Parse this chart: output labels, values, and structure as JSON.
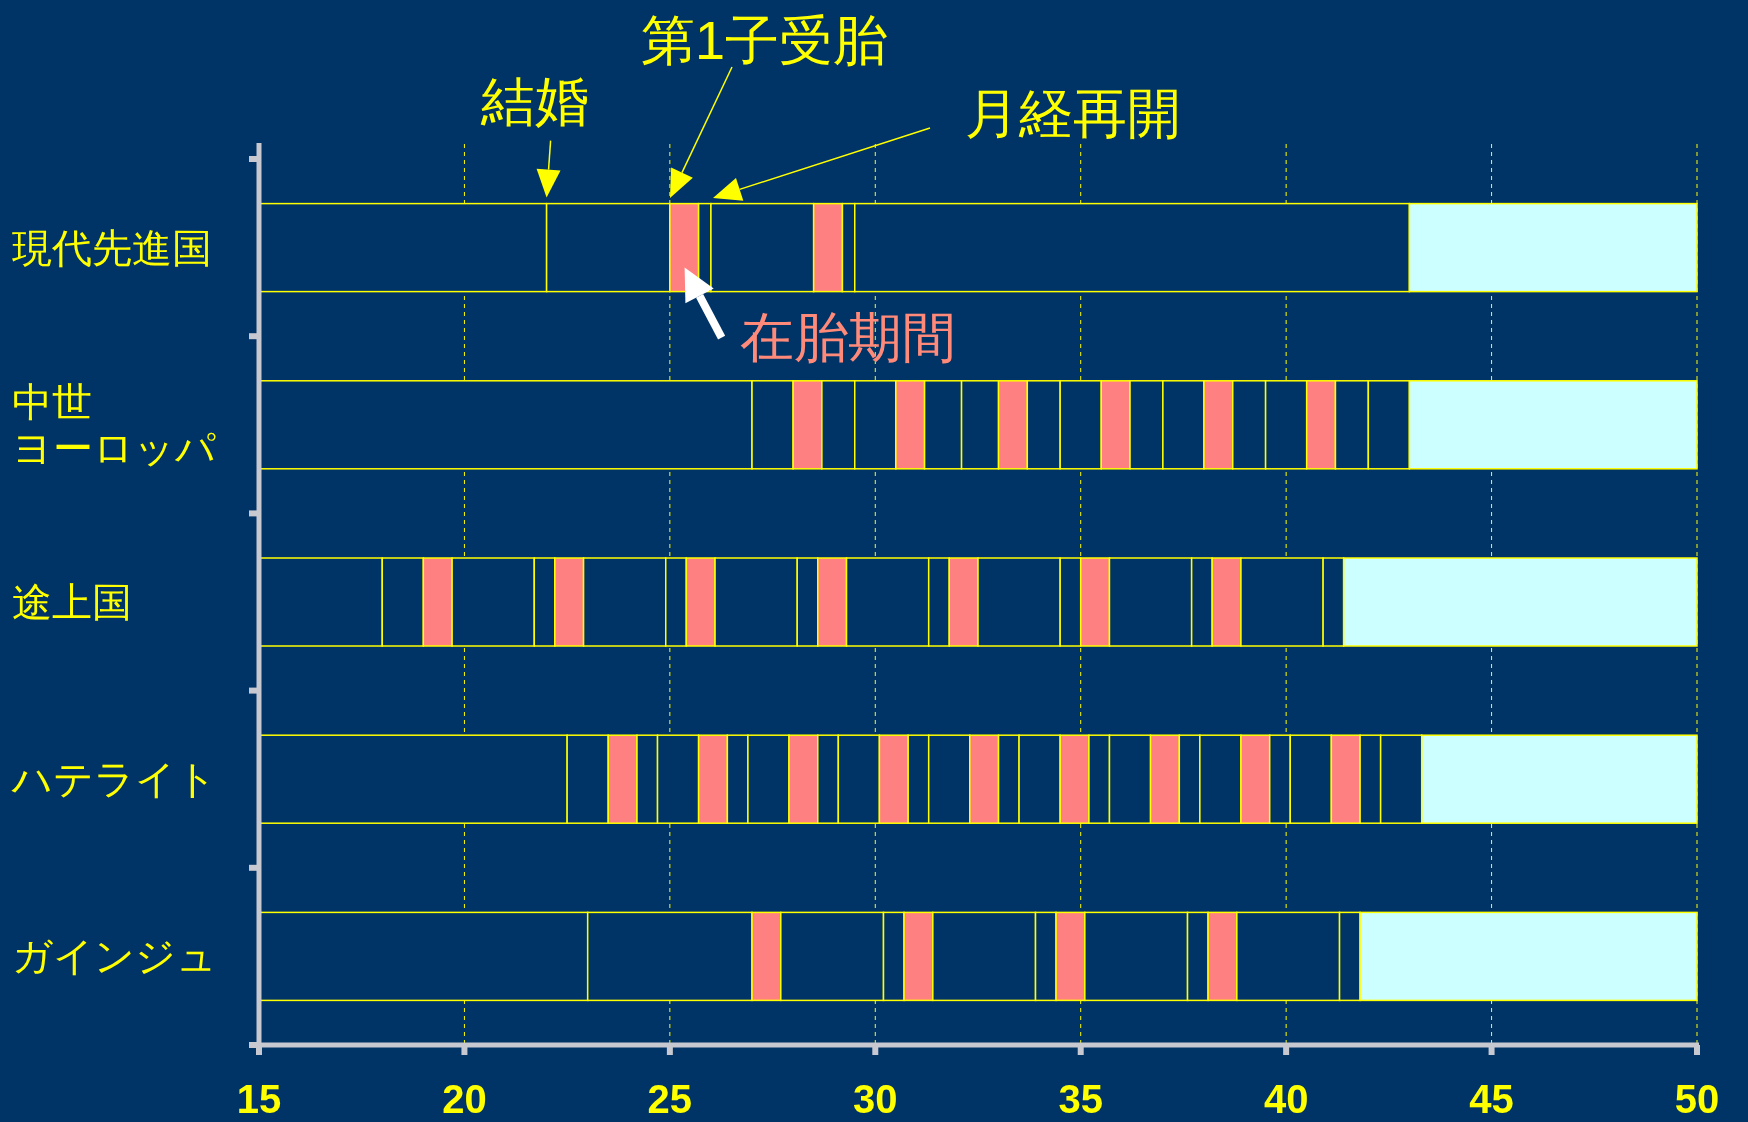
{
  "chart_data": {
    "type": "bar",
    "orientation": "horizontal",
    "categories": [
      "現代先進国",
      "中世ヨーロッパ",
      "途上国",
      "ハテライト",
      "ガインジュ"
    ],
    "xlim": [
      15,
      50
    ],
    "xticks": [
      15,
      20,
      25,
      30,
      35,
      40,
      45,
      50
    ],
    "grid": "x",
    "series": [
      {
        "base": [
          15,
          15,
          15,
          15,
          15
        ],
        "values": [
          7,
          12,
          3,
          7.5,
          8
        ],
        "colors": [
          "#003366",
          "#003366",
          "#003366",
          "#003366",
          "#003366"
        ]
      },
      {
        "base": [
          22,
          27,
          18,
          22.5,
          23
        ],
        "values": [
          3,
          1,
          1,
          1,
          4
        ],
        "colors": [
          "#003366",
          "#003366",
          "#003366",
          "#003366",
          "#003366"
        ]
      },
      {
        "base": [
          25,
          28,
          19,
          23.5,
          27
        ],
        "values": [
          0.7,
          0.7,
          0.7,
          0.7,
          0.7
        ],
        "colors": [
          "#ff8080",
          "#ff8080",
          "#ff8080",
          "#ff8080",
          "#ff8080"
        ]
      },
      {
        "base": [
          25.7,
          28.7,
          19.7,
          24.2,
          27.7
        ],
        "values": [
          0.3,
          0.8,
          2,
          0.5,
          2.5
        ],
        "colors": [
          "#003366",
          "#003366",
          "#003366",
          "#003366",
          "#003366"
        ]
      },
      {
        "base": [
          26,
          29.5,
          21.7,
          24.7,
          30.2
        ],
        "values": [
          2.5,
          1,
          0.5,
          1,
          0.5
        ],
        "colors": [
          "#003366",
          "#003366",
          "#003366",
          "#003366",
          "#003366"
        ]
      },
      {
        "base": [
          28.5,
          30.5,
          22.2,
          25.7,
          30.7
        ],
        "values": [
          0.7,
          0.7,
          0.7,
          0.7,
          0.7
        ],
        "colors": [
          "#ff8080",
          "#ff8080",
          "#ff8080",
          "#ff8080",
          "#ff8080"
        ]
      },
      {
        "base": [
          29.2,
          31.2,
          22.9,
          26.4,
          31.4
        ],
        "values": [
          0.3,
          0.9,
          2,
          0.5,
          2.5
        ],
        "colors": [
          "#003366",
          "#003366",
          "#003366",
          "#003366",
          "#003366"
        ]
      },
      {
        "base": [
          29.5,
          32.1,
          24.9,
          26.9,
          33.9
        ],
        "values": [
          13.5,
          0.9,
          0.5,
          1,
          0.5
        ],
        "colors": [
          "#003366",
          "#003366",
          "#003366",
          "#003366",
          "#003366"
        ]
      },
      {
        "base": [
          43,
          33,
          25.4,
          27.9,
          34.4
        ],
        "values": [
          7,
          0.7,
          0.7,
          0.7,
          0.7
        ],
        "colors": [
          "#ccffff",
          "#ff8080",
          "#ff8080",
          "#ff8080",
          "#ff8080"
        ]
      },
      {
        "base": [
          null,
          33.7,
          26.1,
          28.6,
          35.1
        ],
        "values": [
          null,
          0.8,
          2,
          0.5,
          2.5
        ],
        "colors": [
          null,
          "#003366",
          "#003366",
          "#003366",
          "#003366"
        ]
      },
      {
        "base": [
          null,
          34.5,
          28.1,
          29.1,
          37.6
        ],
        "values": [
          null,
          1,
          0.5,
          1,
          0.5
        ],
        "colors": [
          null,
          "#003366",
          "#003366",
          "#003366",
          "#003366"
        ]
      },
      {
        "base": [
          null,
          35.5,
          28.6,
          30.1,
          38.1
        ],
        "values": [
          null,
          0.7,
          0.7,
          0.7,
          0.7
        ],
        "colors": [
          null,
          "#ff8080",
          "#ff8080",
          "#ff8080",
          "#ff8080"
        ]
      },
      {
        "base": [
          null,
          36.2,
          29.3,
          30.8,
          38.8
        ],
        "values": [
          null,
          0.8,
          2,
          0.5,
          2.5
        ],
        "colors": [
          null,
          "#003366",
          "#003366",
          "#003366",
          "#003366"
        ]
      },
      {
        "base": [
          null,
          37,
          31.3,
          31.3,
          41.3
        ],
        "values": [
          null,
          1,
          0.5,
          1,
          0.5
        ],
        "colors": [
          null,
          "#003366",
          "#003366",
          "#003366",
          "#003366"
        ]
      },
      {
        "base": [
          null,
          38,
          31.8,
          32.3,
          41.8
        ],
        "values": [
          null,
          0.7,
          0.7,
          0.7,
          8.2
        ],
        "colors": [
          null,
          "#ff8080",
          "#ff8080",
          "#ff8080",
          "#ccffff"
        ]
      },
      {
        "base": [
          null,
          38.7,
          32.5,
          33,
          null
        ],
        "values": [
          null,
          0.8,
          2,
          0.5,
          null
        ],
        "colors": [
          null,
          "#003366",
          "#003366",
          "#003366",
          null
        ]
      },
      {
        "base": [
          null,
          39.5,
          34.5,
          33.5,
          null
        ],
        "values": [
          null,
          1,
          0.5,
          1,
          null
        ],
        "colors": [
          null,
          "#003366",
          "#003366",
          "#003366",
          null
        ]
      },
      {
        "base": [
          null,
          40.5,
          35,
          34.5,
          null
        ],
        "values": [
          null,
          0.7,
          0.7,
          0.7,
          null
        ],
        "colors": [
          null,
          "#ff8080",
          "#ff8080",
          "#ff8080",
          null
        ]
      },
      {
        "base": [
          null,
          41.2,
          35.7,
          35.2,
          null
        ],
        "values": [
          null,
          0.8,
          2,
          0.5,
          null
        ],
        "colors": [
          null,
          "#003366",
          "#003366",
          "#003366",
          null
        ]
      },
      {
        "base": [
          null,
          42,
          37.7,
          35.7,
          null
        ],
        "values": [
          null,
          1,
          0.5,
          1,
          null
        ],
        "colors": [
          null,
          "#003366",
          "#003366",
          "#003366",
          null
        ]
      },
      {
        "base": [
          null,
          43,
          38.2,
          36.7,
          null
        ],
        "values": [
          null,
          7,
          0.7,
          0.7,
          null
        ],
        "colors": [
          null,
          "#ccffff",
          "#ff8080",
          "#ff8080",
          null
        ]
      },
      {
        "base": [
          null,
          null,
          38.9,
          37.4,
          null
        ],
        "values": [
          null,
          null,
          2,
          0.5,
          null
        ],
        "colors": [
          null,
          null,
          "#003366",
          "#003366",
          null
        ]
      },
      {
        "base": [
          null,
          null,
          40.9,
          37.9,
          null
        ],
        "values": [
          null,
          null,
          0.5,
          1,
          null
        ],
        "colors": [
          null,
          null,
          "#003366",
          "#003366",
          null
        ]
      },
      {
        "base": [
          null,
          null,
          41.4,
          38.9,
          null
        ],
        "values": [
          null,
          null,
          8.6,
          0.7,
          null
        ],
        "colors": [
          null,
          null,
          "#ccffff",
          "#ff8080",
          null
        ]
      },
      {
        "base": [
          null,
          null,
          null,
          39.6,
          null
        ],
        "values": [
          null,
          null,
          null,
          0.5,
          null
        ],
        "colors": [
          null,
          null,
          null,
          "#003366",
          null
        ]
      },
      {
        "base": [
          null,
          null,
          null,
          40.1,
          null
        ],
        "values": [
          null,
          null,
          null,
          1,
          null
        ],
        "colors": [
          null,
          null,
          null,
          "#003366",
          null
        ]
      },
      {
        "base": [
          null,
          null,
          null,
          41.1,
          null
        ],
        "values": [
          null,
          null,
          null,
          0.7,
          null
        ],
        "colors": [
          null,
          null,
          null,
          "#ff8080",
          null
        ]
      },
      {
        "base": [
          null,
          null,
          null,
          41.8,
          null
        ],
        "values": [
          null,
          null,
          null,
          0.5,
          null
        ],
        "colors": [
          null,
          null,
          null,
          "#003366",
          null
        ]
      },
      {
        "base": [
          null,
          null,
          null,
          42.3,
          null
        ],
        "values": [
          null,
          null,
          null,
          1,
          null
        ],
        "colors": [
          null,
          null,
          null,
          "#003366",
          null
        ]
      },
      {
        "base": [
          null,
          null,
          null,
          43.3,
          null
        ],
        "values": [
          null,
          null,
          null,
          6.7,
          null
        ],
        "colors": [
          null,
          null,
          null,
          "#ccffff",
          null
        ]
      }
    ],
    "annotations": [
      {
        "text": "結婚",
        "x": 22,
        "y": "現代先進国"
      },
      "第1子受胎",
      "月経再開",
      {
        "text": "在胎期間",
        "x": 25.7,
        "y": "現代先進国"
      }
    ]
  }
}
